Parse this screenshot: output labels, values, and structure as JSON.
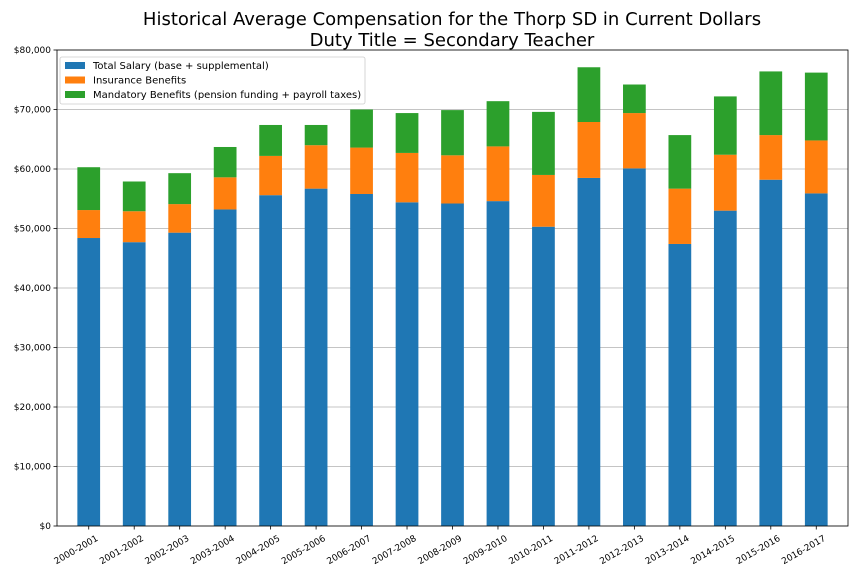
{
  "chart_data": {
    "type": "bar",
    "stacked": true,
    "title": [
      "Historical Average Compensation for the Thorp SD in Current Dollars",
      "Duty Title = Secondary Teacher"
    ],
    "xlabel": "",
    "ylabel": "",
    "ylim": [
      0,
      80000
    ],
    "yticks": [
      0,
      10000,
      20000,
      30000,
      40000,
      50000,
      60000,
      70000,
      80000
    ],
    "ytick_labels": [
      "$0",
      "$10,000",
      "$20,000",
      "$30,000",
      "$40,000",
      "$50,000",
      "$60,000",
      "$70,000",
      "$80,000"
    ],
    "grid": "horizontal",
    "legend_position": "top-left",
    "categories": [
      "2000-2001",
      "2001-2002",
      "2002-2003",
      "2003-2004",
      "2004-2005",
      "2005-2006",
      "2006-2007",
      "2007-2008",
      "2008-2009",
      "2009-2010",
      "2010-2011",
      "2011-2012",
      "2012-2013",
      "2013-2014",
      "2014-2015",
      "2015-2016",
      "2016-2017"
    ],
    "series": [
      {
        "name": "Total Salary (base + supplemental)",
        "color": "#1f77b4",
        "values": [
          48400,
          47700,
          49300,
          53200,
          55600,
          56700,
          55800,
          54400,
          54200,
          54600,
          50300,
          58500,
          60100,
          47400,
          53000,
          58200,
          55900
        ]
      },
      {
        "name": "Insurance Benefits",
        "color": "#ff7f0e",
        "values": [
          4700,
          5200,
          4800,
          5400,
          6600,
          7300,
          7800,
          8300,
          8100,
          9200,
          8700,
          9400,
          9300,
          9300,
          9400,
          7500,
          8900
        ]
      },
      {
        "name": "Mandatory Benefits (pension funding + payroll taxes)",
        "color": "#2ca02c",
        "values": [
          7200,
          5000,
          5200,
          5100,
          5200,
          3400,
          6400,
          6700,
          7600,
          7600,
          10600,
          9200,
          4800,
          9000,
          9800,
          10700,
          11400
        ]
      }
    ]
  }
}
